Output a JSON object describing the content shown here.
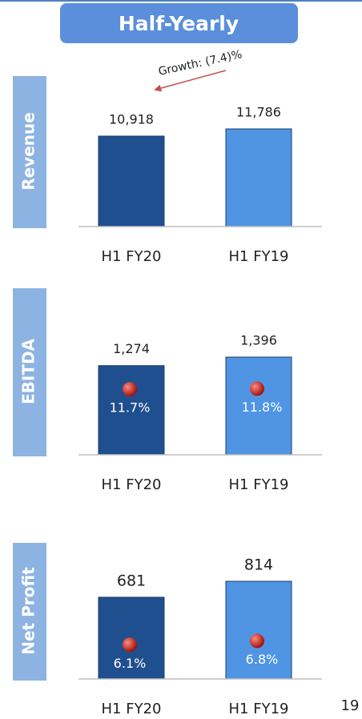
{
  "header": "Half-Yearly",
  "page_number": "19",
  "chart_data": [
    {
      "type": "bar",
      "title": "Revenue",
      "categories": [
        "H1 FY20",
        "H1 FY19"
      ],
      "values": [
        10918,
        11786
      ],
      "value_labels": [
        "10,918",
        "11,786"
      ],
      "colors": [
        "#1f4f8e",
        "#4f95e3"
      ],
      "annotation": "Growth: (7.4)%"
    },
    {
      "type": "bar",
      "title": "EBITDA",
      "categories": [
        "H1 FY20",
        "H1 FY19"
      ],
      "values": [
        1274,
        1396
      ],
      "value_labels": [
        "1,274",
        "1,396"
      ],
      "colors": [
        "#1f4f8e",
        "#4f95e3"
      ],
      "margins": {
        "values": [
          11.7,
          11.8
        ],
        "value_labels": [
          "11.7%",
          "11.8%"
        ],
        "color": "#c0221d"
      }
    },
    {
      "type": "bar",
      "title": "Net Profit",
      "categories": [
        "H1 FY20",
        "H1 FY19"
      ],
      "values": [
        681,
        814
      ],
      "value_labels": [
        "681",
        "814"
      ],
      "colors": [
        "#1f4f8e",
        "#4f95e3"
      ],
      "margins": {
        "values": [
          6.1,
          6.8
        ],
        "value_labels": [
          "6.1%",
          "6.8%"
        ],
        "color": "#c0221d"
      }
    }
  ]
}
